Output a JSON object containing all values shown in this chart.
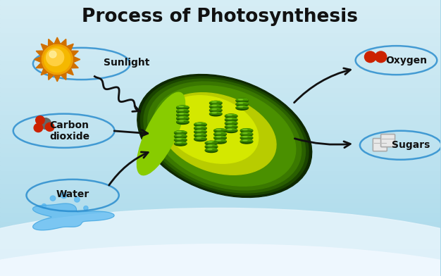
{
  "title": "Process of Photosynthesis",
  "title_fontsize": 19,
  "title_fontweight": "bold",
  "title_color": "#111111",
  "bg_top": "#a8d8ea",
  "bg_bottom": "#c8eaf5",
  "labels": {
    "sunlight": "Sunlight",
    "carbon_dioxide": "Carbon\ndioxide",
    "water": "Water",
    "oxygen": "Oxygen",
    "sugars": "Sugars"
  },
  "label_fontsize": 10,
  "label_color": "#111111",
  "sun_ray_color": "#e08000",
  "sun_body_color": "#f5a623",
  "sun_inner_color": "#f0c040",
  "co2_c_color": "#555555",
  "co2_o_color": "#cc2200",
  "o2_color": "#cc2200",
  "water_color": "#4da6e8",
  "sugar_color": "#e0e0e0",
  "arrow_color": "#111111",
  "bubble_edge": "#2288cc",
  "chloro_dark": "#1a4800",
  "chloro_mid": "#2d6600",
  "chloro_green": "#4a8c00",
  "chloro_yellow": "#c8d800",
  "stroma_color": "#8ab800",
  "granum_dark": "#2d6600",
  "granum_light": "#4aaa00",
  "granum_top": "#66cc00"
}
